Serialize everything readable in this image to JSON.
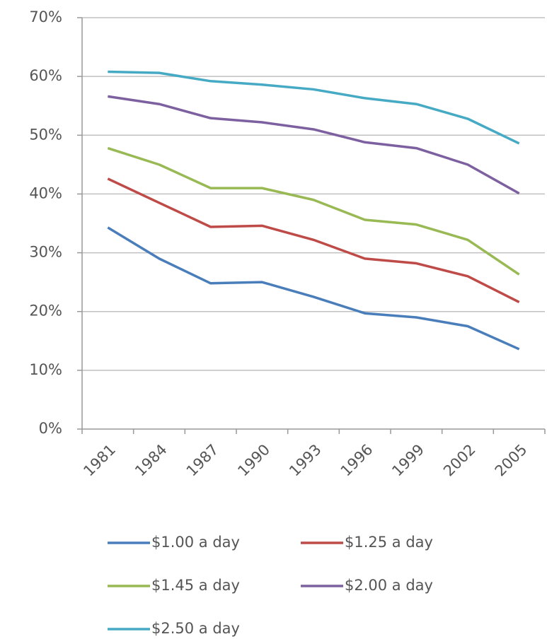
{
  "chart_data": {
    "type": "line",
    "categories": [
      "1981",
      "1984",
      "1987",
      "1990",
      "1993",
      "1996",
      "1999",
      "2002",
      "2005"
    ],
    "series": [
      {
        "name": "$1.00 a day",
        "color": "#4a7ebb",
        "values": [
          34.3,
          29,
          24.8,
          25,
          22.5,
          19.7,
          19,
          17.5,
          13.6
        ]
      },
      {
        "name": "$1.25 a day",
        "color": "#be4b48",
        "values": [
          42.6,
          38.5,
          34.4,
          34.6,
          32.2,
          29,
          28.2,
          26,
          21.6
        ]
      },
      {
        "name": "$1.45 a day",
        "color": "#98b954",
        "values": [
          47.8,
          45,
          41,
          41,
          39,
          35.6,
          34.8,
          32.2,
          26.3
        ]
      },
      {
        "name": "$2.00 a day",
        "color": "#7d60a0",
        "values": [
          56.6,
          55.3,
          52.9,
          52.2,
          51,
          48.8,
          47.8,
          45,
          40.1
        ]
      },
      {
        "name": "$2.50 a day",
        "color": "#46aac5",
        "values": [
          60.8,
          60.6,
          59.2,
          58.6,
          57.8,
          56.3,
          55.3,
          52.8,
          48.6
        ]
      }
    ],
    "ylim": [
      0,
      70
    ],
    "yticks": [
      {
        "value": 0,
        "label": "0%"
      },
      {
        "value": 10,
        "label": "10%"
      },
      {
        "value": 20,
        "label": "20%"
      },
      {
        "value": 30,
        "label": "30%"
      },
      {
        "value": 40,
        "label": "40%"
      },
      {
        "value": 50,
        "label": "50%"
      },
      {
        "value": 60,
        "label": "60%"
      },
      {
        "value": 70,
        "label": "70%"
      }
    ],
    "grid": true
  }
}
